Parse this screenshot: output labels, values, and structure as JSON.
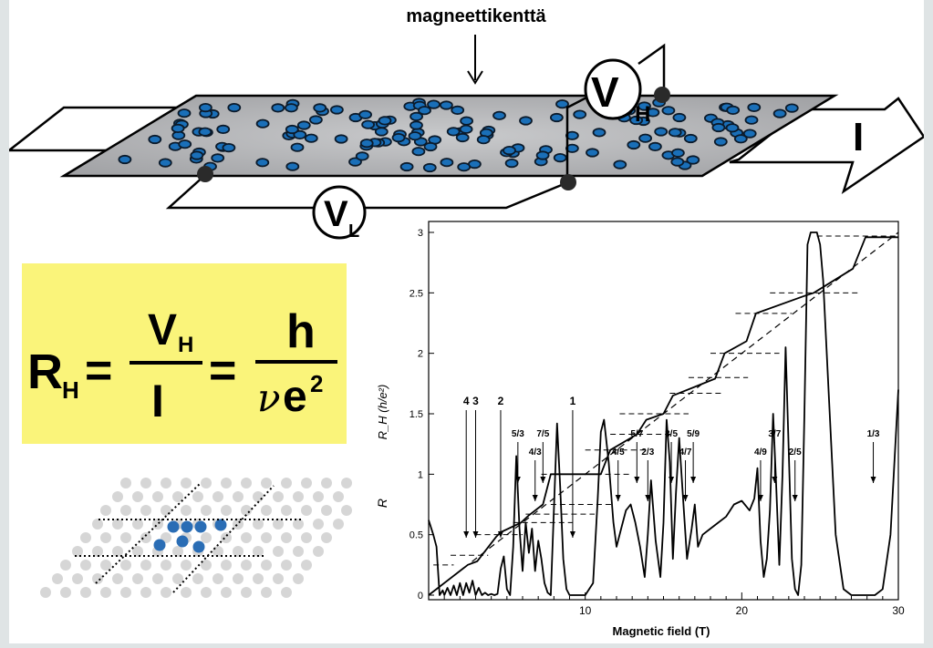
{
  "diagram": {
    "field_label": "magneettikenttä",
    "vh_main": "V",
    "vh_sub": "H",
    "vl_main": "V",
    "vl_sub": "L",
    "current": "I",
    "colors": {
      "sheet": "#b5b6b8",
      "carrier_fill": "#1a6fb8",
      "carrier_ring": "#0b1a2a",
      "contact": "#2a2a2a"
    }
  },
  "formula": {
    "r": "R",
    "r_sub": "H",
    "eq1": "=",
    "num_v": "V",
    "num_v_sub": "H",
    "den_i": "I",
    "eq2": "=",
    "num_h": "h",
    "den_nu": "ν",
    "den_e": "e",
    "den_exp": "2",
    "background": "#faf47a"
  },
  "lattice": {
    "gray_dot": "#d6d6d6",
    "blue_dot": "#2a6db5"
  },
  "chart_data": {
    "type": "line",
    "xlabel": "Magnetic field (T)",
    "ylabel_hall": "R_H (h/e²)",
    "ylabel_long": "R",
    "xlim": [
      0,
      30
    ],
    "ylim": [
      0,
      3
    ],
    "x_ticks": [
      "10",
      "20",
      "30"
    ],
    "x_tick_values": [
      10,
      20,
      30
    ],
    "y_ticks": [
      "0",
      "0.5",
      "1",
      "1.5",
      "2",
      "2.5",
      "3"
    ],
    "y_tick_values": [
      0,
      0.5,
      1,
      1.5,
      2,
      2.5,
      3
    ],
    "classical_line": {
      "x": [
        0,
        30
      ],
      "y": [
        0,
        3
      ]
    },
    "hall_series": {
      "x": [
        0,
        2.5,
        3.1,
        3.4,
        4.3,
        4.6,
        5.9,
        6.4,
        7.3,
        7.8,
        11.0,
        11.6,
        13.3,
        13.9,
        15.0,
        15.6,
        18.3,
        18.9,
        20.3,
        20.9,
        23.9,
        24.6,
        27.1,
        27.9,
        30
      ],
      "y": [
        0,
        0.25,
        0.28,
        0.33,
        0.48,
        0.52,
        0.6,
        0.66,
        0.75,
        1.0,
        1.0,
        1.2,
        1.33,
        1.45,
        1.5,
        1.65,
        1.79,
        2.0,
        2.1,
        2.33,
        2.47,
        2.5,
        2.7,
        2.96,
        2.96
      ]
    },
    "plateaus": [
      {
        "x": [
          0.3,
          1.6
        ],
        "y": 0.25
      },
      {
        "x": [
          1.4,
          3.8
        ],
        "y": 0.33
      },
      {
        "x": [
          3.0,
          6.0
        ],
        "y": 0.5
      },
      {
        "x": [
          5.4,
          9.2
        ],
        "y": 0.6
      },
      {
        "x": [
          6.2,
          10.6
        ],
        "y": 0.67
      },
      {
        "x": [
          7.8,
          11.8
        ],
        "y": 0.75
      },
      {
        "x": [
          7.2,
          12.8
        ],
        "y": 1.0
      },
      {
        "x": [
          10.0,
          13.8
        ],
        "y": 1.2
      },
      {
        "x": [
          11.6,
          15.6
        ],
        "y": 1.33
      },
      {
        "x": [
          12.2,
          16.6
        ],
        "y": 1.5
      },
      {
        "x": [
          15.4,
          18.8
        ],
        "y": 1.67
      },
      {
        "x": [
          16.6,
          20.4
        ],
        "y": 1.8
      },
      {
        "x": [
          18.0,
          22.4
        ],
        "y": 2.0
      },
      {
        "x": [
          19.6,
          23.2
        ],
        "y": 2.33
      },
      {
        "x": [
          21.8,
          27.6
        ],
        "y": 2.5
      },
      {
        "x": [
          24.8,
          30.0
        ],
        "y": 2.97
      }
    ],
    "longitudinal_series": {
      "x": [
        0,
        0.3,
        0.5,
        0.7,
        0.9,
        1.0,
        1.2,
        1.4,
        1.6,
        1.8,
        2.0,
        2.2,
        2.4,
        2.6,
        2.8,
        3.0,
        3.2,
        3.4,
        3.6,
        3.8,
        4.0,
        4.2,
        4.4,
        4.6,
        4.8,
        5.0,
        5.2,
        5.4,
        5.6,
        5.8,
        6.0,
        6.2,
        6.4,
        6.6,
        6.8,
        7.0,
        7.2,
        7.4,
        7.6,
        7.8,
        8.0,
        8.2,
        8.4,
        8.6,
        8.8,
        9.0,
        9.5,
        10.0,
        10.5,
        10.8,
        11.0,
        11.2,
        11.5,
        11.8,
        12.0,
        12.3,
        12.6,
        12.9,
        13.2,
        13.5,
        13.8,
        14.0,
        14.2,
        14.5,
        14.8,
        15.0,
        15.2,
        15.4,
        15.6,
        15.8,
        16.0,
        16.2,
        16.5,
        16.8,
        17.0,
        17.2,
        17.5,
        18.0,
        18.5,
        19.0,
        19.5,
        20.0,
        20.5,
        20.8,
        21.0,
        21.2,
        21.4,
        21.6,
        21.8,
        22.0,
        22.2,
        22.4,
        22.6,
        22.8,
        23.0,
        23.2,
        23.4,
        23.6,
        23.8,
        24.0,
        24.2,
        24.4,
        24.6,
        24.8,
        25.0,
        25.2,
        25.5,
        26.0,
        26.5,
        27.0,
        27.5,
        28.0,
        28.5,
        29.0,
        29.5,
        30.0
      ],
      "y": [
        0.62,
        0.5,
        0.4,
        0.0,
        0.04,
        0.0,
        0.06,
        0.0,
        0.08,
        0.0,
        0.1,
        0.0,
        0.1,
        0.02,
        0.12,
        0.0,
        0.06,
        0.0,
        0.02,
        0.0,
        0.01,
        0.0,
        0.01,
        0.22,
        0.32,
        0.05,
        0.0,
        0.4,
        1.15,
        0.55,
        0.2,
        0.6,
        0.35,
        0.55,
        0.2,
        0.45,
        0.3,
        0.1,
        0.02,
        0.0,
        0.7,
        1.42,
        0.9,
        0.3,
        0.05,
        0.0,
        0.0,
        0.0,
        0.1,
        0.8,
        1.35,
        1.45,
        1.1,
        0.6,
        0.4,
        0.55,
        0.7,
        0.75,
        0.6,
        0.4,
        0.15,
        0.5,
        0.95,
        0.45,
        0.15,
        0.6,
        1.45,
        1.1,
        0.3,
        0.85,
        1.3,
        0.9,
        0.3,
        0.55,
        0.75,
        0.4,
        0.5,
        0.55,
        0.6,
        0.65,
        0.75,
        0.78,
        0.7,
        0.8,
        1.05,
        0.45,
        0.15,
        0.3,
        0.7,
        1.5,
        0.9,
        0.25,
        1.0,
        2.05,
        1.2,
        0.3,
        0.05,
        0.0,
        0.25,
        1.5,
        2.9,
        3.0,
        3.0,
        3.0,
        2.9,
        2.6,
        1.8,
        0.5,
        0.05,
        0.0,
        0.0,
        0.0,
        0.0,
        0.05,
        0.5,
        1.7
      ]
    },
    "state_labels": [
      {
        "label": "4",
        "x": 2.4
      },
      {
        "label": "3",
        "x": 3.0
      },
      {
        "label": "2",
        "x": 4.6
      },
      {
        "label": "1",
        "x": 9.2
      },
      {
        "label": "5/3",
        "x": 5.7
      },
      {
        "label": "4/3",
        "x": 6.8
      },
      {
        "label": "7/5",
        "x": 7.3
      },
      {
        "label": "4/5",
        "x": 12.1
      },
      {
        "label": "5/7",
        "x": 13.3
      },
      {
        "label": "2/3",
        "x": 14.0
      },
      {
        "label": "3/5",
        "x": 15.5
      },
      {
        "label": "4/7",
        "x": 16.4
      },
      {
        "label": "5/9",
        "x": 16.9
      },
      {
        "label": "4/9",
        "x": 21.2
      },
      {
        "label": "3/7",
        "x": 22.1
      },
      {
        "label": "2/5",
        "x": 23.4
      },
      {
        "label": "1/3",
        "x": 28.4
      }
    ]
  }
}
